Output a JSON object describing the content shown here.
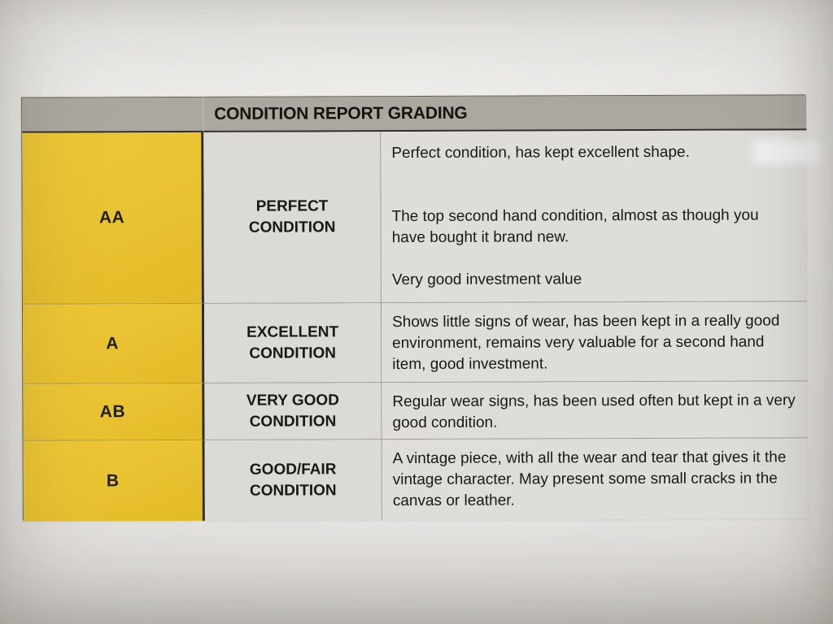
{
  "document": {
    "header": {
      "title": "CONDITION REPORT GRADING"
    },
    "grading_table": {
      "rows": [
        {
          "grade": "AA",
          "condition": "PERFECT CONDITION",
          "description_paragraphs": [
            "Perfect condition, has kept excellent shape.",
            "The top second hand condition, almost as though you have bought it brand new.",
            "Very good investment value"
          ]
        },
        {
          "grade": "A",
          "condition": "EXCELLENT CONDITION",
          "description_paragraphs": [
            "Shows little signs of wear, has been kept in a really good environment, remains very valuable for a second hand item, good investment."
          ]
        },
        {
          "grade": "AB",
          "condition": "VERY GOOD CONDITION",
          "description_paragraphs": [
            "Regular wear signs, has been used often but kept in a very good condition."
          ]
        },
        {
          "grade": "B",
          "condition": "GOOD/FAIR CONDITION",
          "description_paragraphs": [
            "A vintage piece, with all the wear and tear that gives it the vintage character. May present some small cracks in the canvas or leather."
          ]
        }
      ]
    },
    "colors": {
      "grade_column_yellow": "#e9c231",
      "header_gray": "#aca8a1",
      "cell_background": "#dcdbd8",
      "paper": "#eae9e6",
      "text": "#1a1814",
      "dark_border": "#2f2c27"
    }
  }
}
